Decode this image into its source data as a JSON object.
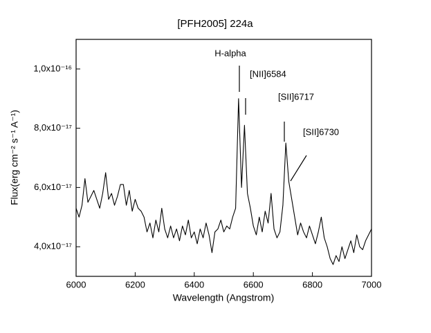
{
  "chart_data": {
    "type": "line",
    "title": "[PFH2005] 224a",
    "xlabel": "Wavelength (Angstrom)",
    "ylabel": "Flux(erg cm⁻² s⁻¹ A⁻¹)",
    "xlim": [
      6000,
      7000
    ],
    "xticks": [
      6000,
      6200,
      6400,
      6600,
      6800,
      7000
    ],
    "ylim": [
      3e-17,
      1.1e-16
    ],
    "yticks": [
      {
        "value": 4e-17,
        "label": "4,0x10⁻¹⁷"
      },
      {
        "value": 6e-17,
        "label": "6,0x10⁻¹⁷"
      },
      {
        "value": 8e-17,
        "label": "8,0x10⁻¹⁷"
      },
      {
        "value": 1e-16,
        "label": "1,0x10⁻¹⁶"
      }
    ],
    "annotations": [
      "H-alpha",
      "[NII]6584",
      "[SII]6717",
      "[SII]6730"
    ],
    "series": [
      {
        "color": "#000000",
        "x": [
          6000,
          6010,
          6020,
          6030,
          6040,
          6050,
          6060,
          6070,
          6080,
          6090,
          6100,
          6110,
          6120,
          6130,
          6140,
          6150,
          6160,
          6170,
          6180,
          6190,
          6200,
          6210,
          6220,
          6230,
          6240,
          6250,
          6260,
          6270,
          6280,
          6290,
          6300,
          6310,
          6320,
          6330,
          6340,
          6350,
          6360,
          6370,
          6380,
          6390,
          6400,
          6410,
          6420,
          6430,
          6440,
          6450,
          6460,
          6470,
          6480,
          6490,
          6500,
          6510,
          6520,
          6530,
          6540,
          6550,
          6560,
          6570,
          6580,
          6590,
          6600,
          6610,
          6620,
          6630,
          6640,
          6650,
          6660,
          6670,
          6680,
          6690,
          6700,
          6710,
          6720,
          6730,
          6740,
          6750,
          6760,
          6770,
          6780,
          6790,
          6800,
          6810,
          6820,
          6830,
          6840,
          6850,
          6860,
          6870,
          6880,
          6890,
          6900,
          6910,
          6920,
          6930,
          6940,
          6950,
          6960,
          6970,
          6980,
          6990,
          7000
        ],
        "values": [
          5.3e-17,
          5e-17,
          5.4e-17,
          6.3e-17,
          5.5e-17,
          5.7e-17,
          5.9e-17,
          5.6e-17,
          5.3e-17,
          5.8e-17,
          6.5e-17,
          5.6e-17,
          5.8e-17,
          5.4e-17,
          5.7e-17,
          6.1e-17,
          6.1e-17,
          5.4e-17,
          5.9e-17,
          5.2e-17,
          5.6e-17,
          5.3e-17,
          5.2e-17,
          5e-17,
          4.5e-17,
          4.8e-17,
          4.3e-17,
          4.9e-17,
          4.5e-17,
          5.3e-17,
          4.6e-17,
          4.3e-17,
          4.7e-17,
          4.3e-17,
          4.6e-17,
          4.2e-17,
          4.7e-17,
          4.4e-17,
          4.9e-17,
          4.3e-17,
          4.5e-17,
          4.1e-17,
          4.6e-17,
          4.3e-17,
          4.8e-17,
          4.4e-17,
          3.8e-17,
          4.5e-17,
          4.6e-17,
          4.9e-17,
          4.5e-17,
          4.7e-17,
          4.6e-17,
          5e-17,
          5.3e-17,
          9e-17,
          6e-17,
          8.1e-17,
          5.8e-17,
          5.3e-17,
          4.7e-17,
          4.4e-17,
          5e-17,
          4.5e-17,
          5.2e-17,
          4.8e-17,
          5.8e-17,
          4.6e-17,
          4.3e-17,
          4.5e-17,
          5.4e-17,
          7.5e-17,
          6.2e-17,
          5.6e-17,
          5e-17,
          4.4e-17,
          4.8e-17,
          4.5e-17,
          4.3e-17,
          4.7e-17,
          4.4e-17,
          4.1e-17,
          4.5e-17,
          5e-17,
          4.3e-17,
          4e-17,
          3.6e-17,
          3.4e-17,
          3.7e-17,
          3.5e-17,
          4e-17,
          3.6e-17,
          3.9e-17,
          4.2e-17,
          3.8e-17,
          4.4e-17,
          4e-17,
          3.9e-17,
          4.2e-17,
          4.4e-17,
          4.6e-17
        ]
      }
    ]
  }
}
